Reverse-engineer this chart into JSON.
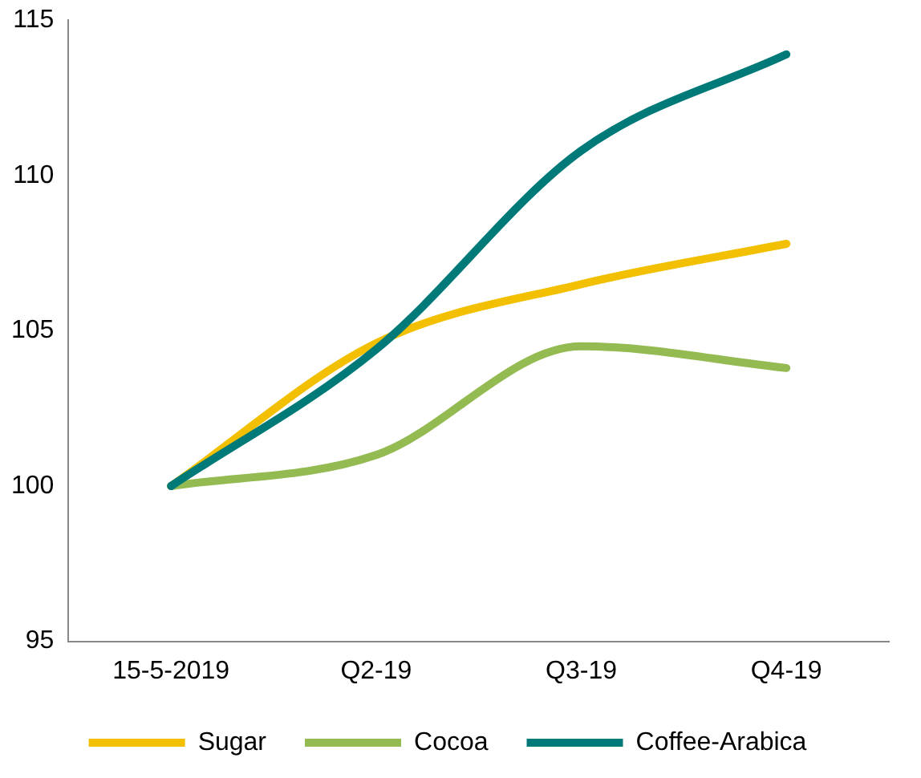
{
  "chart_data": {
    "type": "line",
    "categories": [
      "15-5-2019",
      "Q2-19",
      "Q3-19",
      "Q4-19"
    ],
    "series": [
      {
        "name": "Sugar",
        "color": "#f2c000",
        "values": [
          100,
          104.6,
          106.5,
          107.8
        ]
      },
      {
        "name": "Cocoa",
        "color": "#93bb52",
        "values": [
          100,
          101,
          104.5,
          103.8
        ]
      },
      {
        "name": "Coffee-Arabica",
        "color": "#007a78",
        "values": [
          100,
          104.4,
          110.8,
          113.9
        ]
      }
    ],
    "ylim": [
      95,
      115
    ],
    "yticks": [
      95,
      100,
      105,
      110,
      115
    ],
    "grid": false,
    "legend": "bottom",
    "marker": "none",
    "line_style": "solid"
  }
}
